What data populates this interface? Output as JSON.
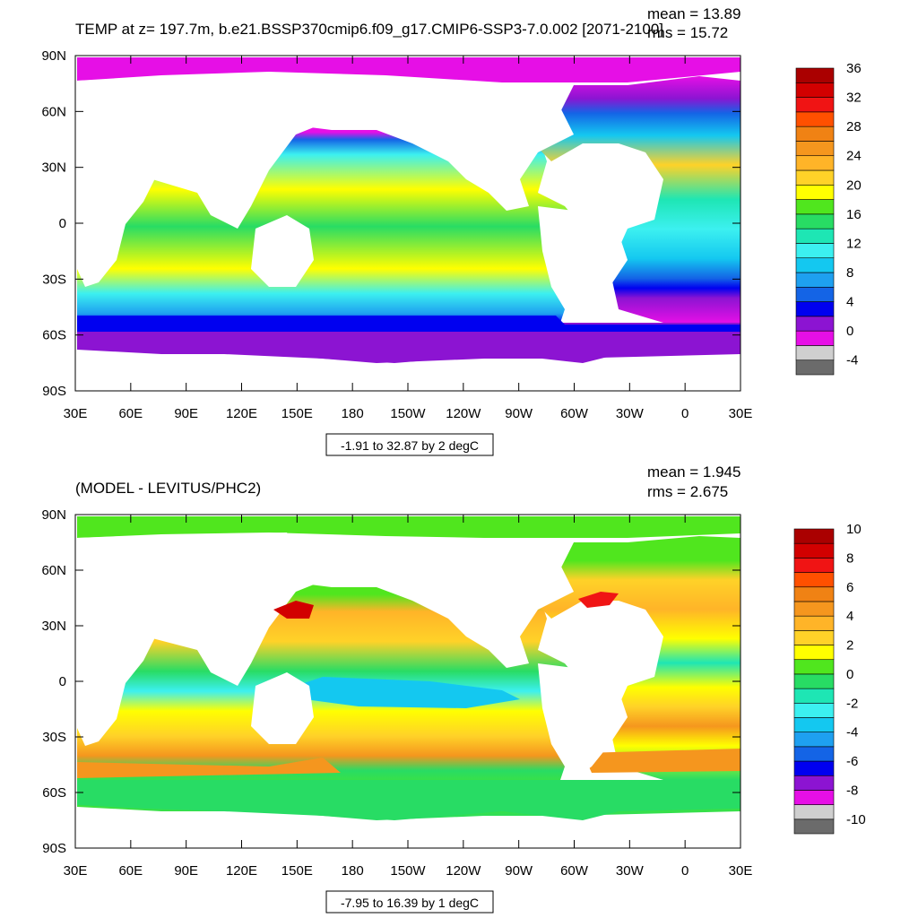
{
  "chart_data": [
    {
      "type": "heatmap",
      "title": "TEMP at z= 197.7m, b.e21.BSSP370cmip6.f09_g17.CMIP6-SSP3-7.0.002 [2071-2100]",
      "stats": {
        "mean": "mean = 13.89",
        "rms": "rms = 15.72"
      },
      "x_ticks": [
        "30E",
        "60E",
        "90E",
        "120E",
        "150E",
        "180",
        "150W",
        "120W",
        "90W",
        "60W",
        "30W",
        "0",
        "30E"
      ],
      "y_ticks": [
        "90N",
        "60N",
        "30N",
        "0",
        "30S",
        "60S",
        "90S"
      ],
      "range_label": "-1.91 to 32.87 by 2 degC",
      "colorbar": {
        "colors": [
          "#6b6b6b",
          "#cfcfcf",
          "#e60fe6",
          "#8c14d2",
          "#0000f0",
          "#1464e6",
          "#1ea0f0",
          "#14c8f0",
          "#3cf0f0",
          "#1ee6b4",
          "#28dc64",
          "#50e61e",
          "#ffff00",
          "#ffd228",
          "#ffb428",
          "#f5961e",
          "#f08214",
          "#ff5000",
          "#f01414",
          "#d20000",
          "#aa0000"
        ],
        "labels": [
          "36",
          "32",
          "28",
          "24",
          "20",
          "16",
          "12",
          "8",
          "4",
          "0",
          "-4"
        ]
      }
    },
    {
      "type": "heatmap",
      "title": "(MODEL - LEVITUS/PHC2)",
      "stats": {
        "mean": "mean = 1.945",
        "rms": "rms = 2.675"
      },
      "x_ticks": [
        "30E",
        "60E",
        "90E",
        "120E",
        "150E",
        "180",
        "150W",
        "120W",
        "90W",
        "60W",
        "30W",
        "0",
        "30E"
      ],
      "y_ticks": [
        "90N",
        "60N",
        "30N",
        "0",
        "30S",
        "60S",
        "90S"
      ],
      "range_label": "-7.95 to 16.39 by 1 degC",
      "colorbar": {
        "colors": [
          "#6b6b6b",
          "#cfcfcf",
          "#e60fe6",
          "#8c14d2",
          "#0000f0",
          "#1464e6",
          "#1ea0f0",
          "#14c8f0",
          "#3cf0f0",
          "#1ee6b4",
          "#28dc64",
          "#50e61e",
          "#ffff00",
          "#ffd228",
          "#ffb428",
          "#f5961e",
          "#f08214",
          "#ff5000",
          "#f01414",
          "#d20000",
          "#aa0000"
        ],
        "labels": [
          "10",
          "8",
          "6",
          "4",
          "2",
          "0",
          "-2",
          "-4",
          "-6",
          "-8",
          "-10"
        ]
      }
    }
  ]
}
